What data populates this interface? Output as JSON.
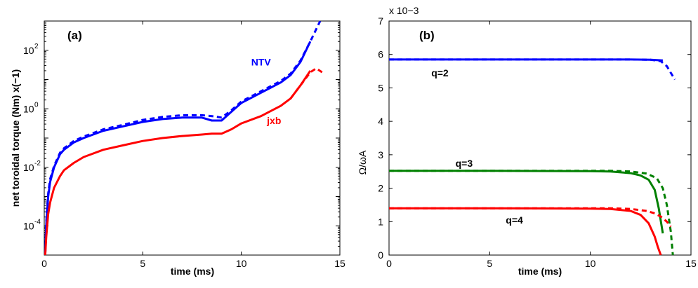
{
  "chart_data": [
    {
      "type": "line",
      "panel_label": "(a)",
      "xlabel": "time (ms)",
      "ylabel": "net toroidal torque (Nm) x(−1)",
      "xlim": [
        0,
        15
      ],
      "ylim_log10": [
        -5,
        3
      ],
      "yscale": "log",
      "xticks": [
        "0",
        "5",
        "10",
        "15"
      ],
      "yticks": [
        {
          "base": "10",
          "exp": "-4",
          "log": -4
        },
        {
          "base": "10",
          "exp": "-2",
          "log": -2
        },
        {
          "base": "10",
          "exp": "0",
          "log": 0
        },
        {
          "base": "10",
          "exp": "2",
          "log": 2
        }
      ],
      "grid": false,
      "annotations": [
        {
          "text": "NTV",
          "color": "#0000ff",
          "x": 10.5,
          "ylog": 1.6
        },
        {
          "text": "jxb",
          "color": "#ff0000",
          "x": 11.3,
          "ylog": -0.4
        }
      ],
      "series": [
        {
          "color": "#0000ff",
          "dash": false,
          "x": [
            0.05,
            0.1,
            0.2,
            0.3,
            0.5,
            0.8,
            1.0,
            1.5,
            2,
            3,
            4,
            5,
            6,
            7,
            8,
            8.5,
            9,
            9.5,
            10,
            11,
            12,
            12.5,
            13,
            13.5
          ],
          "ylog": [
            -5,
            -4.0,
            -3.0,
            -2.5,
            -2.0,
            -1.55,
            -1.4,
            -1.15,
            -1.0,
            -0.75,
            -0.6,
            -0.45,
            -0.35,
            -0.3,
            -0.3,
            -0.4,
            -0.4,
            -0.1,
            0.2,
            0.55,
            0.9,
            1.15,
            1.6,
            2.3
          ]
        },
        {
          "color": "#0000ff",
          "dash": true,
          "x": [
            0.05,
            0.1,
            0.2,
            0.3,
            0.5,
            0.8,
            1.0,
            1.5,
            2,
            3,
            4,
            5,
            6,
            7,
            8,
            8.5,
            9,
            9.5,
            10,
            11,
            12,
            12.5,
            13,
            13.5,
            14
          ],
          "ylog": [
            -5,
            -3.9,
            -2.9,
            -2.4,
            -1.95,
            -1.5,
            -1.35,
            -1.1,
            -0.95,
            -0.7,
            -0.55,
            -0.38,
            -0.28,
            -0.22,
            -0.22,
            -0.25,
            -0.3,
            -0.05,
            0.25,
            0.6,
            0.95,
            1.2,
            1.65,
            2.3,
            3.0
          ]
        },
        {
          "color": "#ff0000",
          "dash": false,
          "x": [
            0.05,
            0.1,
            0.2,
            0.3,
            0.5,
            0.8,
            1.0,
            1.5,
            2,
            3,
            4,
            5,
            6,
            7,
            8,
            8.5,
            9,
            9.5,
            10,
            11,
            12,
            12.5,
            13,
            13.5
          ],
          "ylog": [
            -5,
            -4.4,
            -3.6,
            -3.2,
            -2.7,
            -2.3,
            -2.1,
            -1.85,
            -1.65,
            -1.4,
            -1.25,
            -1.1,
            -1.0,
            -0.93,
            -0.88,
            -0.85,
            -0.85,
            -0.7,
            -0.5,
            -0.25,
            0.1,
            0.35,
            0.8,
            1.3
          ]
        },
        {
          "color": "#ff0000",
          "dash": true,
          "x": [
            12.5,
            13,
            13.5,
            13.8,
            14.1
          ],
          "ylog": [
            0.35,
            0.8,
            1.25,
            1.38,
            1.25
          ]
        }
      ]
    },
    {
      "type": "line",
      "panel_label": "(b)",
      "xlabel": "time (ms)",
      "ylabel": "Ω/ωA",
      "y_multiplier": "x 10−3",
      "xlim": [
        0,
        15
      ],
      "ylim": [
        0,
        7
      ],
      "xticks": [
        "0",
        "5",
        "10",
        "15"
      ],
      "yticks": [
        "0",
        "1",
        "2",
        "3",
        "4",
        "5",
        "6",
        "7"
      ],
      "grid": false,
      "annotations": [
        {
          "text": "q=2",
          "color": "#000000",
          "x": 2.1,
          "y": 5.45
        },
        {
          "text": "q=3",
          "color": "#000000",
          "x": 3.3,
          "y": 2.75
        },
        {
          "text": "q=4",
          "color": "#000000",
          "x": 5.8,
          "y": 1.05
        }
      ],
      "series": [
        {
          "color": "#0000ff",
          "dash": false,
          "x": [
            0,
            5,
            10,
            12,
            13,
            13.6
          ],
          "y": [
            5.85,
            5.85,
            5.85,
            5.85,
            5.84,
            5.82
          ]
        },
        {
          "color": "#0000ff",
          "dash": true,
          "x": [
            0,
            5,
            10,
            12,
            13,
            13.5,
            13.8,
            14.0,
            14.2
          ],
          "y": [
            5.85,
            5.85,
            5.85,
            5.85,
            5.84,
            5.8,
            5.65,
            5.45,
            5.25
          ]
        },
        {
          "color": "#008000",
          "dash": false,
          "x": [
            0,
            5,
            10,
            11,
            12,
            12.5,
            12.9,
            13.2,
            13.4,
            13.6
          ],
          "y": [
            2.52,
            2.52,
            2.51,
            2.5,
            2.45,
            2.38,
            2.25,
            1.95,
            1.4,
            0.65
          ]
        },
        {
          "color": "#008000",
          "dash": true,
          "x": [
            0,
            5,
            10,
            11,
            12,
            12.8,
            13.3,
            13.6,
            13.8,
            14.0,
            14.1
          ],
          "y": [
            2.52,
            2.52,
            2.52,
            2.52,
            2.5,
            2.44,
            2.3,
            2.0,
            1.5,
            0.7,
            0.0
          ]
        },
        {
          "color": "#ff0000",
          "dash": false,
          "x": [
            0,
            5,
            10,
            11,
            12,
            12.5,
            12.9,
            13.2,
            13.35,
            13.5
          ],
          "y": [
            1.4,
            1.4,
            1.39,
            1.38,
            1.32,
            1.2,
            0.95,
            0.55,
            0.25,
            0.0
          ]
        },
        {
          "color": "#ff0000",
          "dash": true,
          "x": [
            0,
            5,
            10,
            11,
            12,
            12.8,
            13.2,
            13.5,
            13.8,
            14.0
          ],
          "y": [
            1.4,
            1.4,
            1.4,
            1.4,
            1.38,
            1.32,
            1.25,
            1.15,
            1.0,
            0.85
          ]
        }
      ]
    }
  ]
}
